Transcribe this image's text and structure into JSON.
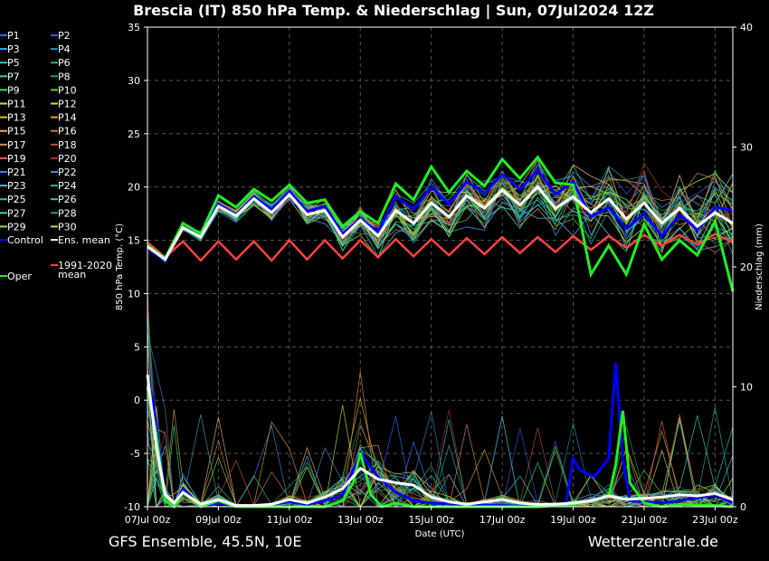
{
  "chart_data": {
    "type": "line",
    "title": "Brescia  (IT)  850 hPa Temp. & Niederschlag | Sun, 07Jul2024 12Z",
    "xlabel": "Date (UTC)",
    "ylabel_left": "850 hPa Temp. (°C)",
    "ylabel_right": "Niederschlag (mm)",
    "x_range_days": [
      0,
      16.5
    ],
    "ylim_left": [
      -10,
      35
    ],
    "ylim_right": [
      0,
      40
    ],
    "y_ticks_left": [
      -10,
      -5,
      0,
      5,
      10,
      15,
      20,
      25,
      30,
      35
    ],
    "y_ticks_right": [
      0,
      10,
      20,
      30,
      40
    ],
    "x_ticks": [
      {
        "day": 0,
        "label": "07Jul 00z"
      },
      {
        "day": 2,
        "label": "09Jul 00z"
      },
      {
        "day": 4,
        "label": "11Jul 00z"
      },
      {
        "day": 6,
        "label": "13Jul 00z"
      },
      {
        "day": 8,
        "label": "15Jul 00z"
      },
      {
        "day": 10,
        "label": "17Jul 00z"
      },
      {
        "day": 12,
        "label": "19Jul 00z"
      },
      {
        "day": 14,
        "label": "21Jul 00z"
      },
      {
        "day": 16,
        "label": "23Jul 00z"
      }
    ],
    "grid": true,
    "legend_position": "left",
    "legend": [
      {
        "label": "P1",
        "color": "#1e6fff"
      },
      {
        "label": "P2",
        "color": "#2f56e0"
      },
      {
        "label": "P3",
        "color": "#3aa0ff"
      },
      {
        "label": "P4",
        "color": "#1d8cbf"
      },
      {
        "label": "P5",
        "color": "#2fc4c4"
      },
      {
        "label": "P6",
        "color": "#1fb38f"
      },
      {
        "label": "P7",
        "color": "#33d1a0"
      },
      {
        "label": "P8",
        "color": "#1f9e4f"
      },
      {
        "label": "P9",
        "color": "#3fe06a"
      },
      {
        "label": "P10",
        "color": "#55d12b"
      },
      {
        "label": "P11",
        "color": "#b7e23a"
      },
      {
        "label": "P12",
        "color": "#d9d23a"
      },
      {
        "label": "P13",
        "color": "#e6c034"
      },
      {
        "label": "P14",
        "color": "#e0a030"
      },
      {
        "label": "P15",
        "color": "#e8b070"
      },
      {
        "label": "P16",
        "color": "#c97f3a"
      },
      {
        "label": "P17",
        "color": "#e08a4a"
      },
      {
        "label": "P18",
        "color": "#c4502a"
      },
      {
        "label": "P19",
        "color": "#e0604a"
      },
      {
        "label": "P20",
        "color": "#b02a2a"
      },
      {
        "label": "P21",
        "color": "#3d7fff"
      },
      {
        "label": "P22",
        "color": "#3a90d0"
      },
      {
        "label": "P23",
        "color": "#57b8e0"
      },
      {
        "label": "P24",
        "color": "#2aa9a9"
      },
      {
        "label": "P25",
        "color": "#33c48f"
      },
      {
        "label": "P26",
        "color": "#2ad080"
      },
      {
        "label": "P27",
        "color": "#4fd2b0"
      },
      {
        "label": "P28",
        "color": "#2fa050"
      },
      {
        "label": "P29",
        "color": "#8fe030"
      },
      {
        "label": "P30",
        "color": "#e0d030"
      },
      {
        "label": "Control",
        "color": "#0000ff"
      },
      {
        "label": "Ens. mean",
        "color": "#ffffff"
      },
      {
        "label": "Oper",
        "color": "#22ee22"
      },
      {
        "label": "1991-2020\nmean",
        "color": "#ff4040"
      }
    ],
    "series_temperature": [
      {
        "name": "Oper",
        "days": [
          0,
          0.5,
          1,
          1.5,
          2,
          2.5,
          3,
          3.5,
          4,
          4.5,
          5,
          5.5,
          6,
          6.5,
          7,
          7.5,
          8,
          8.5,
          9,
          9.5,
          10,
          10.5,
          11,
          11.5,
          12,
          12.5,
          13,
          13.5,
          14,
          14.5,
          15,
          15.5,
          16,
          16.5
        ],
        "values": [
          14.5,
          13.3,
          16.6,
          15.6,
          19.2,
          18.1,
          19.8,
          18.7,
          20.2,
          18.5,
          18.8,
          16.3,
          17.7,
          16.6,
          20.3,
          18.8,
          21.9,
          19.5,
          21.5,
          20.1,
          22.6,
          20.8,
          22.8,
          20.4,
          20.2,
          11.8,
          14.5,
          11.8,
          16.5,
          13.2,
          15.0,
          13.6,
          16.8,
          10.2
        ]
      },
      {
        "name": "Control",
        "days": [
          0,
          0.5,
          1,
          1.5,
          2,
          2.5,
          3,
          3.5,
          4,
          4.5,
          5,
          5.5,
          6,
          6.5,
          7,
          7.5,
          8,
          8.5,
          9,
          9.5,
          10,
          10.5,
          11,
          11.5,
          12,
          12.5,
          13,
          13.5,
          14,
          14.5,
          15,
          15.5,
          16,
          16.5
        ],
        "values": [
          14.3,
          13.1,
          16.3,
          15.4,
          18.4,
          17.4,
          19.1,
          17.9,
          19.6,
          17.7,
          18.2,
          15.6,
          17.0,
          15.8,
          19.1,
          17.9,
          20.0,
          18.4,
          20.5,
          19.4,
          21.2,
          19.8,
          21.6,
          19.3,
          20.5,
          17.2,
          18.1,
          16.1,
          17.5,
          15.4,
          17.4,
          16.0,
          18.1,
          17.8
        ]
      },
      {
        "name": "Ens. mean",
        "days": [
          0,
          0.5,
          1,
          1.5,
          2,
          2.5,
          3,
          3.5,
          4,
          4.5,
          5,
          5.5,
          6,
          6.5,
          7,
          7.5,
          8,
          8.5,
          9,
          9.5,
          10,
          10.5,
          11,
          11.5,
          12,
          12.5,
          13,
          13.5,
          14,
          14.5,
          15,
          15.5,
          16,
          16.5
        ],
        "values": [
          14.4,
          13.2,
          16.2,
          15.3,
          18.2,
          17.3,
          18.9,
          17.6,
          19.3,
          17.4,
          17.8,
          15.3,
          16.9,
          15.4,
          17.8,
          16.6,
          18.5,
          17.2,
          19.2,
          18.0,
          19.7,
          18.3,
          20.0,
          18.0,
          19.1,
          17.6,
          18.9,
          17.0,
          18.5,
          16.6,
          18.0,
          16.3,
          17.6,
          16.6
        ]
      },
      {
        "name": "1991-2020 mean",
        "days": [
          0,
          0.5,
          1,
          1.5,
          2,
          2.5,
          3,
          3.5,
          4,
          4.5,
          5,
          5.5,
          6,
          6.5,
          7,
          7.5,
          8,
          8.5,
          9,
          9.5,
          10,
          10.5,
          11,
          11.5,
          12,
          12.5,
          13,
          13.5,
          14,
          14.5,
          15,
          15.5,
          16,
          16.5
        ],
        "values": [
          14.8,
          13.4,
          14.9,
          13.1,
          14.9,
          13.2,
          14.9,
          13.1,
          15.0,
          13.2,
          15.0,
          13.3,
          15.0,
          13.4,
          15.1,
          13.5,
          15.1,
          13.6,
          15.2,
          13.7,
          15.3,
          13.8,
          15.3,
          13.9,
          15.4,
          14.1,
          15.4,
          14.3,
          15.5,
          14.5,
          15.5,
          14.6,
          15.6,
          14.8
        ]
      }
    ],
    "series_precipitation_mm": [
      {
        "name": "Oper",
        "days": [
          0,
          0.25,
          0.5,
          0.75,
          1,
          1.5,
          2,
          2.5,
          3,
          3.5,
          4,
          4.5,
          5,
          5.5,
          5.8,
          6,
          6.3,
          6.6,
          7,
          7.5,
          8,
          9,
          10,
          11,
          12,
          12.5,
          13,
          13.2,
          13.4,
          13.6,
          14,
          14.5,
          15,
          16,
          16.5
        ],
        "values": [
          10,
          6,
          0.5,
          0,
          1.2,
          0,
          0.5,
          0,
          0,
          0,
          0,
          0,
          0,
          0.5,
          2,
          4.5,
          1,
          0,
          0.3,
          0,
          0,
          0,
          0,
          0,
          0.2,
          0.5,
          0.8,
          3.5,
          8,
          2,
          0.3,
          0,
          0.2,
          0.1,
          0
        ]
      },
      {
        "name": "Control",
        "days": [
          0,
          0.25,
          0.5,
          0.75,
          1,
          1.5,
          2,
          2.5,
          3,
          3.5,
          4,
          4.5,
          5,
          5.5,
          6,
          6.5,
          7,
          7.5,
          8,
          9,
          10,
          11,
          11.8,
          12,
          12.2,
          12.6,
          13,
          13.2,
          13.4,
          13.6,
          14,
          14.5,
          15,
          16,
          16.5
        ],
        "values": [
          11,
          7,
          0.5,
          0,
          1.5,
          0,
          0.3,
          0,
          0,
          0.2,
          0.4,
          0.2,
          0.5,
          1,
          4.5,
          2.5,
          1.2,
          0.5,
          0.3,
          0.2,
          0.1,
          0,
          0.3,
          4,
          3,
          2.5,
          4,
          12,
          4,
          0.5,
          0.4,
          0.3,
          0.5,
          1,
          0.3
        ]
      },
      {
        "name": "Ens. mean",
        "days": [
          0,
          0.25,
          0.5,
          0.75,
          1,
          1.5,
          2,
          2.5,
          3,
          3.5,
          4,
          4.5,
          5,
          5.5,
          6,
          6.5,
          7,
          7.5,
          8,
          8.5,
          9,
          9.5,
          10,
          10.5,
          11,
          11.5,
          12,
          12.5,
          13,
          13.5,
          14,
          14.5,
          15,
          15.5,
          16,
          16.5
        ],
        "values": [
          11,
          5,
          1,
          0.3,
          1.2,
          0.2,
          0.6,
          0.1,
          0.1,
          0.2,
          0.6,
          0.3,
          0.8,
          1.5,
          3.2,
          2.3,
          2.0,
          1.8,
          0.8,
          0.4,
          0.2,
          0.4,
          0.6,
          0.3,
          0.2,
          0.2,
          0.3,
          0.5,
          0.9,
          0.6,
          0.7,
          0.8,
          1.0,
          0.9,
          1.1,
          0.6
        ]
      }
    ]
  },
  "footer": {
    "left": "GFS Ensemble, 45.5N, 10E",
    "right": "Wetterzentrale.de"
  }
}
